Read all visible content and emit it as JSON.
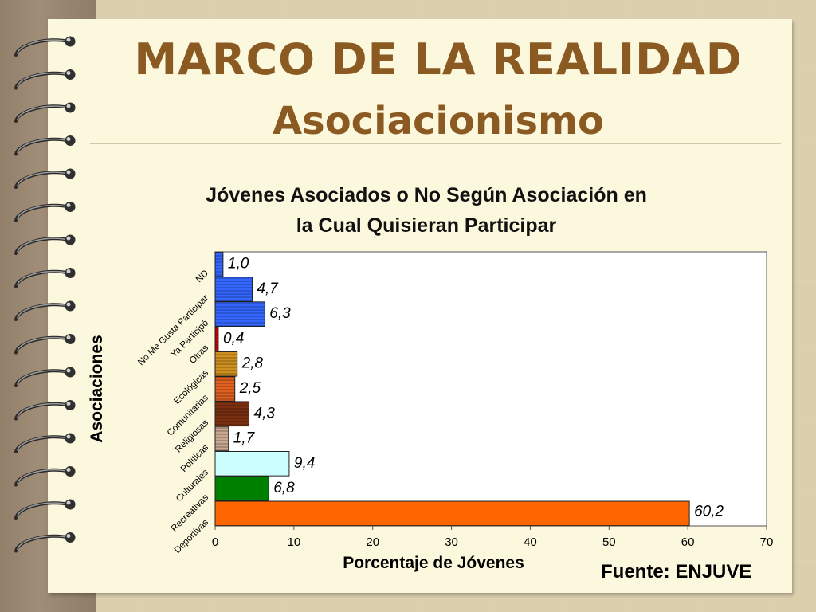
{
  "slide": {
    "title": "MARCO DE LA REALIDAD",
    "subtitle": "Asociacionismo",
    "source": "Fuente: ENJUVE"
  },
  "colors": {
    "paper": "#fbf8dd",
    "title": "#8b5a22",
    "spine": "#9a8770"
  },
  "chart_data": {
    "type": "bar",
    "orientation": "horizontal",
    "title": "Jóvenes Asociados o No Según Asociación en la Cual Quisieran Participar",
    "title_lines": [
      "Jóvenes Asociados o No Según Asociación en",
      "la Cual Quisieran Participar"
    ],
    "xlabel": "Porcentaje de Jóvenes",
    "ylabel": "Asociaciones",
    "xlim": [
      0,
      70
    ],
    "x_ticks": [
      0,
      10,
      20,
      30,
      40,
      50,
      60,
      70
    ],
    "grid": false,
    "legend": "none",
    "categories": [
      "Deportivas",
      "Recreativas",
      "Culturales",
      "Políticas",
      "Religiosas",
      "Comunitarias",
      "Ecológicas",
      "Otras",
      "Ya Participó",
      "No Me Gusta Participar",
      "ND"
    ],
    "values": [
      60.2,
      6.8,
      9.4,
      1.7,
      4.3,
      2.5,
      2.8,
      0.4,
      6.3,
      4.7,
      1.0
    ],
    "value_labels": [
      "60,2",
      "6,8",
      "9,4",
      "1,7",
      "4,3",
      "2,5",
      "2,8",
      "0,4",
      "6,3",
      "4,7",
      "1,0"
    ],
    "bar_colors": [
      "#ff6600",
      "#008000",
      "#ccffff",
      "#c8a890",
      "#7a3010",
      "#e06020",
      "#d09020",
      "#cc0000",
      "#3366ff",
      "#3366ff",
      "#3366ff"
    ]
  }
}
